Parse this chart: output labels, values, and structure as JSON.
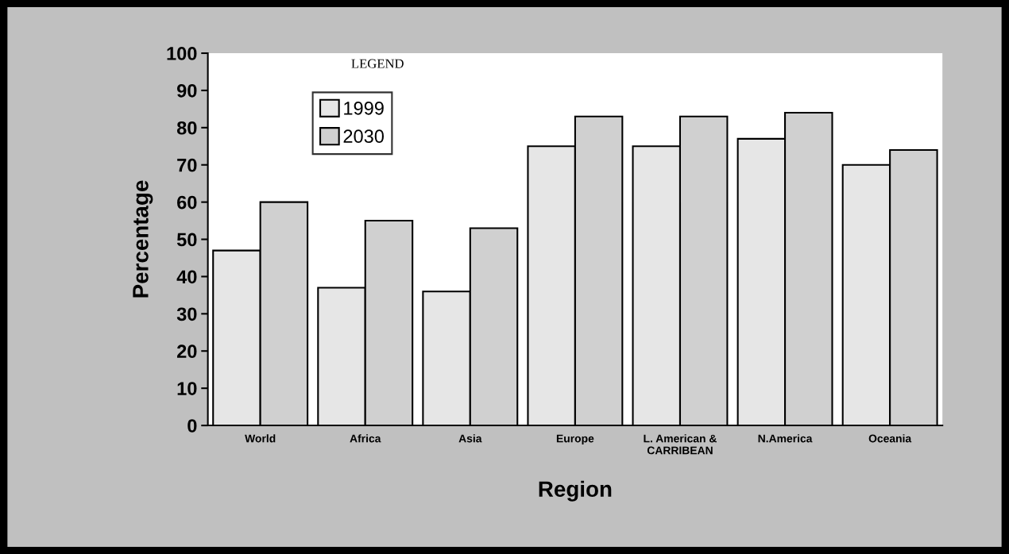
{
  "chart_data": {
    "type": "bar",
    "xlabel": "Region",
    "ylabel": "Percentage",
    "legend_title": "LEGEND",
    "categories": [
      "World",
      "Africa",
      "Asia",
      "Europe",
      "L. American &\nCARRIBEAN",
      "N.America",
      "Oceania"
    ],
    "series": [
      {
        "name": "1999",
        "color": "#e6e6e6",
        "values": [
          47,
          37,
          36,
          75,
          75,
          77,
          70
        ]
      },
      {
        "name": "2030",
        "color": "#d0d0d0",
        "values": [
          60,
          55,
          53,
          83,
          83,
          84,
          74
        ]
      }
    ],
    "ylim": [
      0,
      100
    ],
    "yticks": [
      0,
      10,
      20,
      30,
      40,
      50,
      60,
      70,
      80,
      90,
      100
    ],
    "grid": false,
    "legend": "top left"
  }
}
